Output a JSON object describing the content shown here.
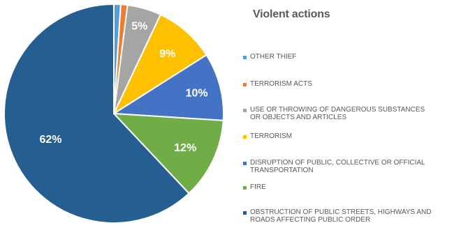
{
  "chart_data": {
    "type": "pie",
    "title": "Violent actions",
    "slices": [
      {
        "label": "OTHER THIEF",
        "value": 1,
        "display": "",
        "color": "#5B9BD5"
      },
      {
        "label": "TERRORISM ACTS",
        "value": 1,
        "display": "",
        "color": "#ED7D31"
      },
      {
        "label": "USE OR THROWING OF DANGEROUS SUBSTANCES OR OBJECTS AND ARTICLES",
        "value": 5,
        "display": "5%",
        "color": "#A5A5A5"
      },
      {
        "label": "TERRORISM",
        "value": 9,
        "display": "9%",
        "color": "#FFC000"
      },
      {
        "label": "DISRUPTION OF PUBLIC, COLLECTIVE OR OFFICIAL TRANSPORTATION",
        "value": 10,
        "display": "10%",
        "color": "#4472C4"
      },
      {
        "label": "FIRE",
        "value": 12,
        "display": "12%",
        "color": "#70AD47"
      },
      {
        "label": "OBSTRUCTION OF PUBLIC STREETS, HIGHWAYS AND ROADS AFFECTING PUBLIC ORDER",
        "value": 62,
        "display": "62%",
        "color": "#255E91"
      }
    ],
    "legend_placement": "right"
  },
  "legend_lines": [
    [
      "OTHER THIEF"
    ],
    [
      "TERRORISM ACTS"
    ],
    [
      "USE OR THROWING OF DANGEROUS SUBSTANCES",
      "OR OBJECTS AND ARTICLES"
    ],
    [
      "TERRORISM"
    ],
    [
      "DISRUPTION OF PUBLIC, COLLECTIVE OR OFFICIAL",
      "TRANSPORTATION"
    ],
    [
      "FIRE"
    ],
    [
      "OBSTRUCTION OF PUBLIC STREETS, HIGHWAYS AND",
      "ROADS AFFECTING PUBLIC ORDER"
    ]
  ]
}
